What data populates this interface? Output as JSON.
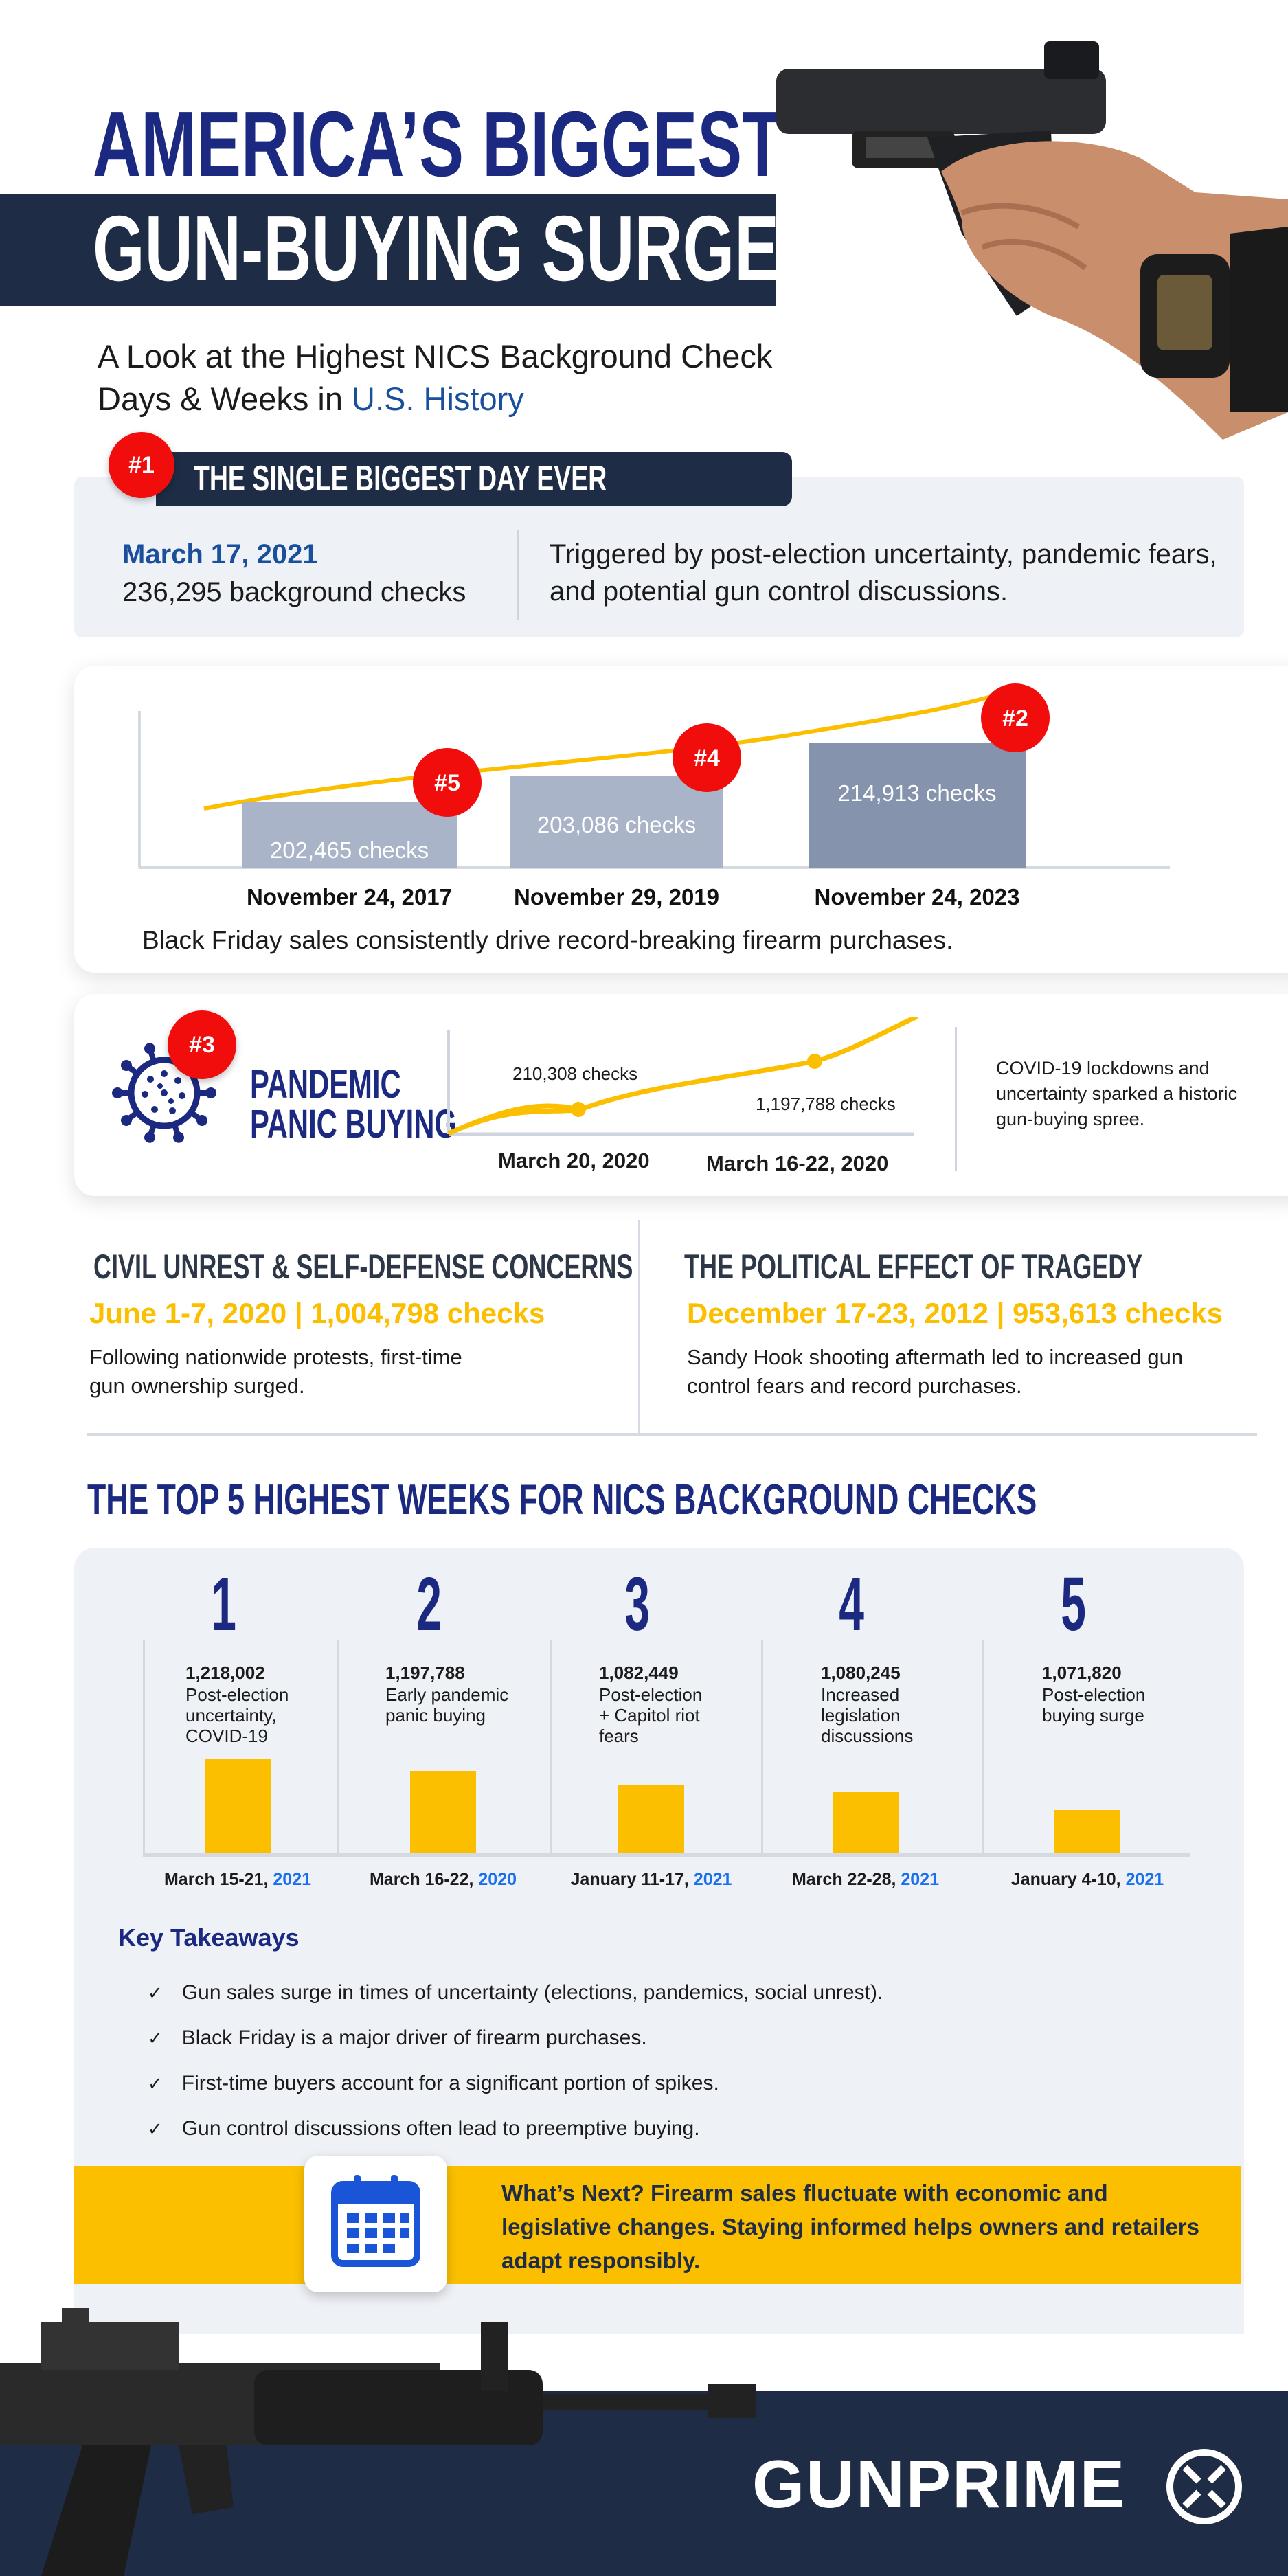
{
  "header": {
    "title_line1": "AMERICA’S BIGGEST",
    "title_line2": "GUN-BUYING SURGES",
    "subtitle_part1": "A Look at the Highest NICS Background Check",
    "subtitle_part2": "Days & Weeks in ",
    "subtitle_highlight": "U.S. History"
  },
  "biggest_day": {
    "badge": "#1",
    "title": "THE SINGLE BIGGEST DAY EVER",
    "date": "March 17, 2021",
    "checks": "236,295 background checks",
    "description": "Triggered by post-election uncertainty, pandemic fears, and potential gun control discussions."
  },
  "black_friday": {
    "caption": "Black Friday sales consistently drive record-breaking firearm purchases.",
    "items": [
      {
        "badge": "#5",
        "date": "November 24, 2017",
        "label": "202,465  checks",
        "value": 202465
      },
      {
        "badge": "#4",
        "date": "November 29, 2019",
        "label": "203,086 checks",
        "value": 203086
      },
      {
        "badge": "#2",
        "date": "November 24, 2023",
        "label": "214,913 checks",
        "value": 214913
      }
    ]
  },
  "pandemic": {
    "badge": "#3",
    "title_line1": "PANDEMIC",
    "title_line2": "PANIC BUYING",
    "point1_label": "210,308 checks",
    "point1_date": "March 20, 2020",
    "point2_label": "1,197,788 checks",
    "point2_date": "March 16-22, 2020",
    "description": "COVID-19 lockdowns and uncertainty sparked a historic gun-buying spree."
  },
  "civil_unrest": {
    "title": "CIVIL UNREST & SELF-DEFENSE CONCERNS",
    "stat": "June 1-7, 2020 | 1,004,798 checks",
    "description": "Following nationwide protests, first-time gun ownership surged."
  },
  "tragedy": {
    "title": "THE POLITICAL EFFECT OF TRAGEDY",
    "stat": "December 17-23, 2012 | 953,613 checks",
    "description": "Sandy Hook shooting aftermath led to increased gun control fears and record purchases."
  },
  "top5": {
    "title": "THE TOP 5 HIGHEST WEEKS FOR NICS BACKGROUND CHECKS"
  },
  "chart_data": {
    "type": "bar",
    "categories": [
      "March 15-21, 2021",
      "March 16-22, 2020",
      "January 11-17, 2021",
      "March 22-28, 2021",
      "January 4-10, 2021"
    ],
    "ranks": [
      "1",
      "2",
      "3",
      "4",
      "5"
    ],
    "date_parts": [
      [
        "March 15-21, ",
        "2021"
      ],
      [
        "March 16-22, ",
        "2020"
      ],
      [
        "January 11-17, ",
        "2021"
      ],
      [
        "March 22-28, ",
        "2021"
      ],
      [
        "January 4-10, ",
        "2021"
      ]
    ],
    "values": [
      1218002,
      1197788,
      1082449,
      1080245,
      1071820
    ],
    "value_labels": [
      "1,218,002",
      "1,197,788",
      "1,082,449",
      "1,080,245",
      "1,071,820"
    ],
    "descriptions": [
      "Post-election uncertainty, COVID-19",
      "Early pandemic panic buying",
      "Post-election + Capitol riot fears",
      "Increased legislation discussions",
      "Post-election buying surge"
    ],
    "bar_color": "#fbbf00",
    "year_color": "#1a6ff0"
  },
  "takeaways": {
    "title": "Key Takeaways",
    "items": [
      "Gun sales surge in times of uncertainty (elections, pandemics, social unrest).",
      "Black Friday is a major driver of firearm purchases.",
      "First-time buyers account for a significant portion of spikes.",
      "Gun control discussions often lead to preemptive buying."
    ]
  },
  "banner": {
    "text": "What’s Next? Firearm sales fluctuate with economic and legislative changes. Staying informed helps owners and retailers adapt responsibly.",
    "icon": "calendar-icon"
  },
  "footer": {
    "brand": "GUNPRIME"
  },
  "colors": {
    "navy": "#1b2a80",
    "dark": "#1e2d45",
    "yellow": "#fbbf00",
    "red": "#f20d0d",
    "panel": "#eef1f6"
  }
}
